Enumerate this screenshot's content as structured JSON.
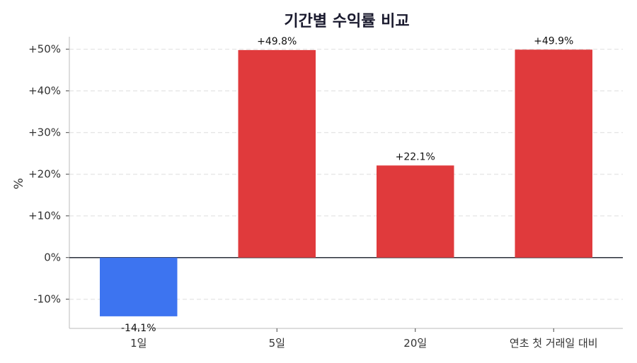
{
  "chart_data": {
    "type": "bar",
    "title": "기간별 수익률 비교",
    "xlabel": "",
    "ylabel": "%",
    "categories": [
      "1일",
      "5일",
      "20일",
      "연초 첫 거래일 대비"
    ],
    "values": [
      -14.1,
      49.8,
      22.1,
      49.9
    ],
    "data_labels": [
      "-14.1%",
      "+49.8%",
      "+22.1%",
      "+49.9%"
    ],
    "ylim": [
      -17,
      53
    ],
    "yticks": [
      -10,
      0,
      10,
      20,
      30,
      40,
      50
    ],
    "ytick_labels": [
      "-10%",
      "0%",
      "+10%",
      "+20%",
      "+30%",
      "+40%",
      "+50%"
    ],
    "grid": true,
    "colors": {
      "positive": "#e03a3c",
      "negative": "#3d74f0",
      "zero_line": "#2a2f3a",
      "grid": "#dddddd"
    }
  }
}
